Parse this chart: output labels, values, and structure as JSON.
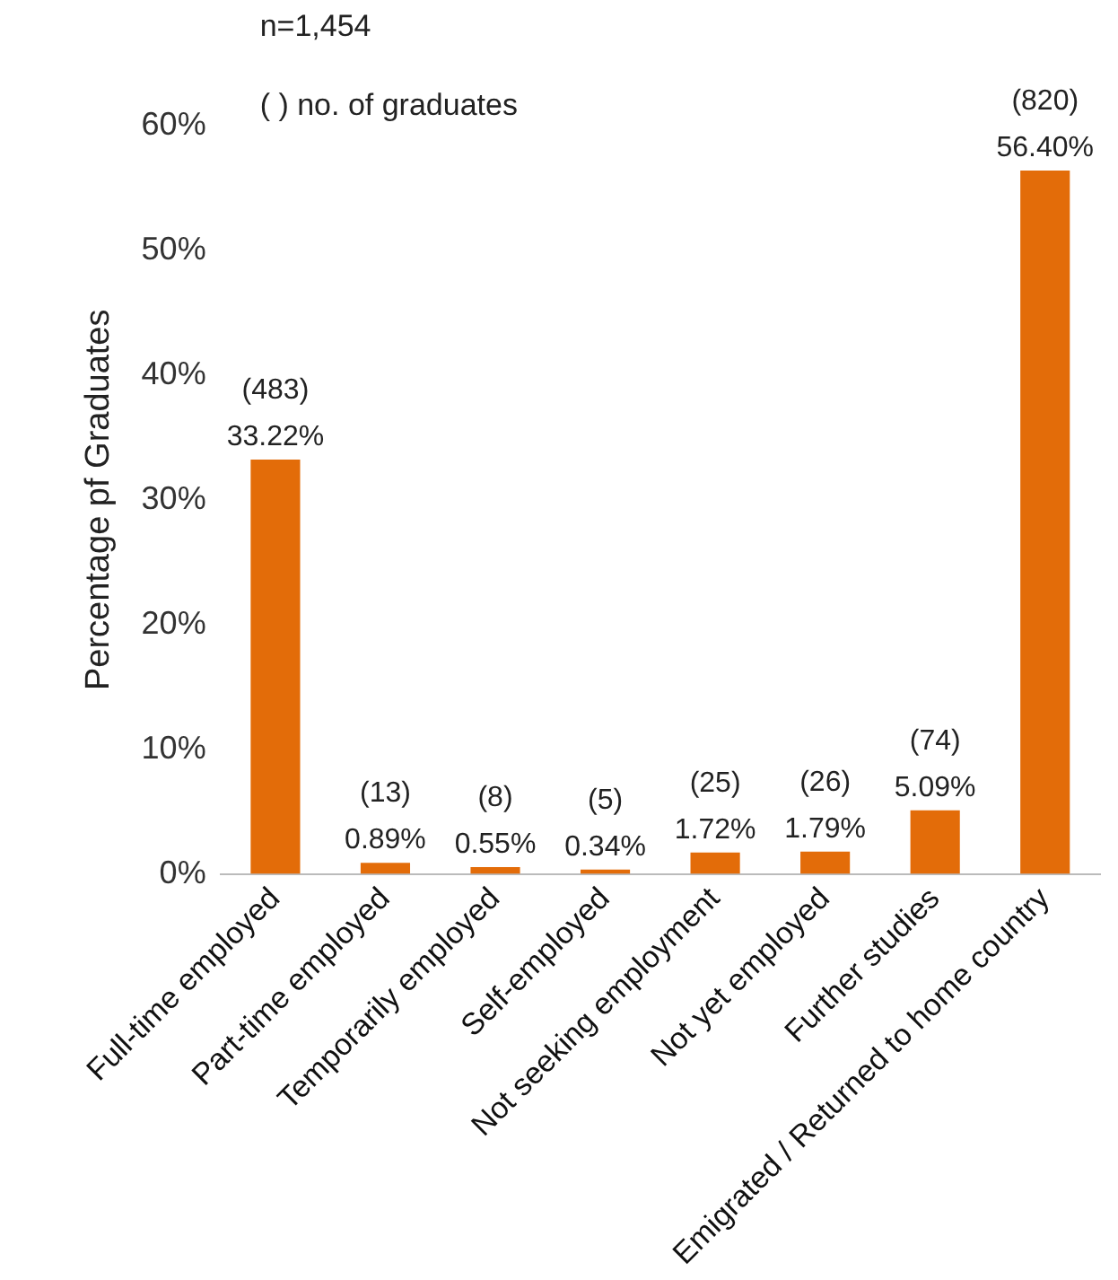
{
  "chart_data": {
    "type": "bar",
    "ylabel": "Percentage pf Graduates",
    "annotations": [
      "n=1,454",
      "( ) no. of graduates"
    ],
    "categories": [
      "Full-time employed",
      "Part-time employed",
      "Temporarily employed",
      "Self-employed",
      "Not seeking employment",
      "Not yet employed",
      "Further studies",
      "Emigrated / Returned to home country"
    ],
    "values": [
      33.22,
      0.89,
      0.55,
      0.34,
      1.72,
      1.79,
      5.09,
      56.4
    ],
    "value_labels": [
      "(483)\n33.22%",
      "(13)\n0.89%",
      "(8)\n0.55%",
      "(5)\n0.34%",
      "(25)\n1.72%",
      "(26)\n1.79%",
      "(74)\n5.09%",
      "(820)\n56.40%"
    ],
    "color": "#e36c09",
    "ylim": [
      0,
      60
    ],
    "yticks": [
      {
        "value": 0,
        "label": "0%"
      },
      {
        "value": 10,
        "label": "10%"
      },
      {
        "value": 20,
        "label": "20%"
      },
      {
        "value": 30,
        "label": "30%"
      },
      {
        "value": 40,
        "label": "40%"
      },
      {
        "value": 50,
        "label": "50%"
      },
      {
        "value": 60,
        "label": "60%"
      }
    ],
    "grid": false,
    "legend": false
  }
}
